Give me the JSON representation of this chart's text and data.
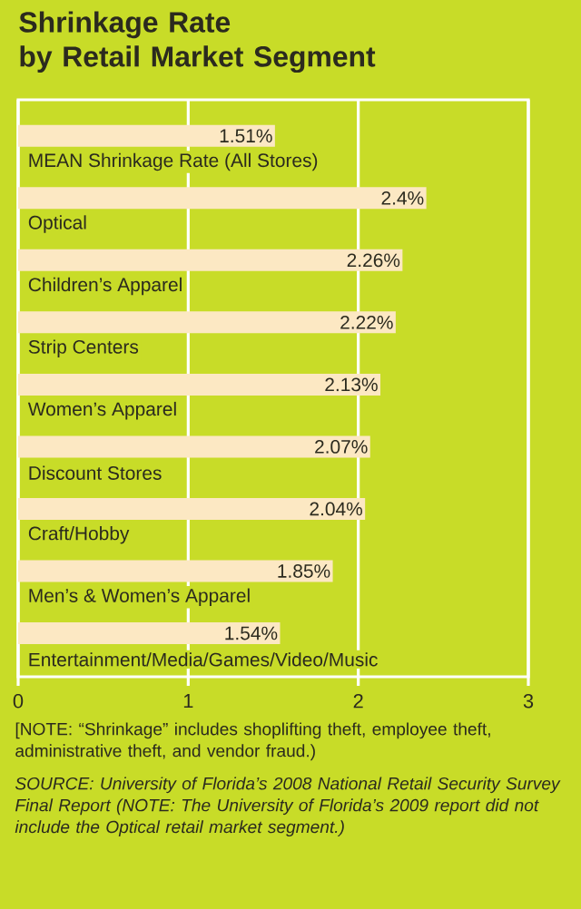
{
  "chart_data": {
    "type": "bar",
    "orientation": "horizontal",
    "title": "Shrinkage Rate\nby Retail Market Segment",
    "categories": [
      "MEAN Shrinkage Rate (All Stores)",
      "Optical",
      "Children’s Apparel",
      "Strip Centers",
      "Women’s Apparel",
      "Discount Stores",
      "Craft/Hobby",
      "Men’s & Women’s Apparel",
      "Entertainment/Media/Games/Video/Music"
    ],
    "values": [
      1.51,
      2.4,
      2.26,
      2.22,
      2.13,
      2.07,
      2.04,
      1.85,
      1.54
    ],
    "value_labels": [
      "1.51%",
      "2.4%",
      "2.26%",
      "2.22%",
      "2.13%",
      "2.07%",
      "2.04%",
      "1.85%",
      "1.54%"
    ],
    "color": "#fce8c3",
    "xlim": [
      0,
      3
    ],
    "xticks": [
      0,
      1,
      2,
      3
    ],
    "grid": "x",
    "annotations": [
      "[NOTE: “Shrinkage” includes shoplifting theft, employee theft, administrative theft, and vendor fraud.)",
      "SOURCE: University of Florida’s 2008 National Retail Security Survey Final Report (NOTE: The University of Florida’s 2009 report did not include the Optical retail market segment.)"
    ]
  }
}
